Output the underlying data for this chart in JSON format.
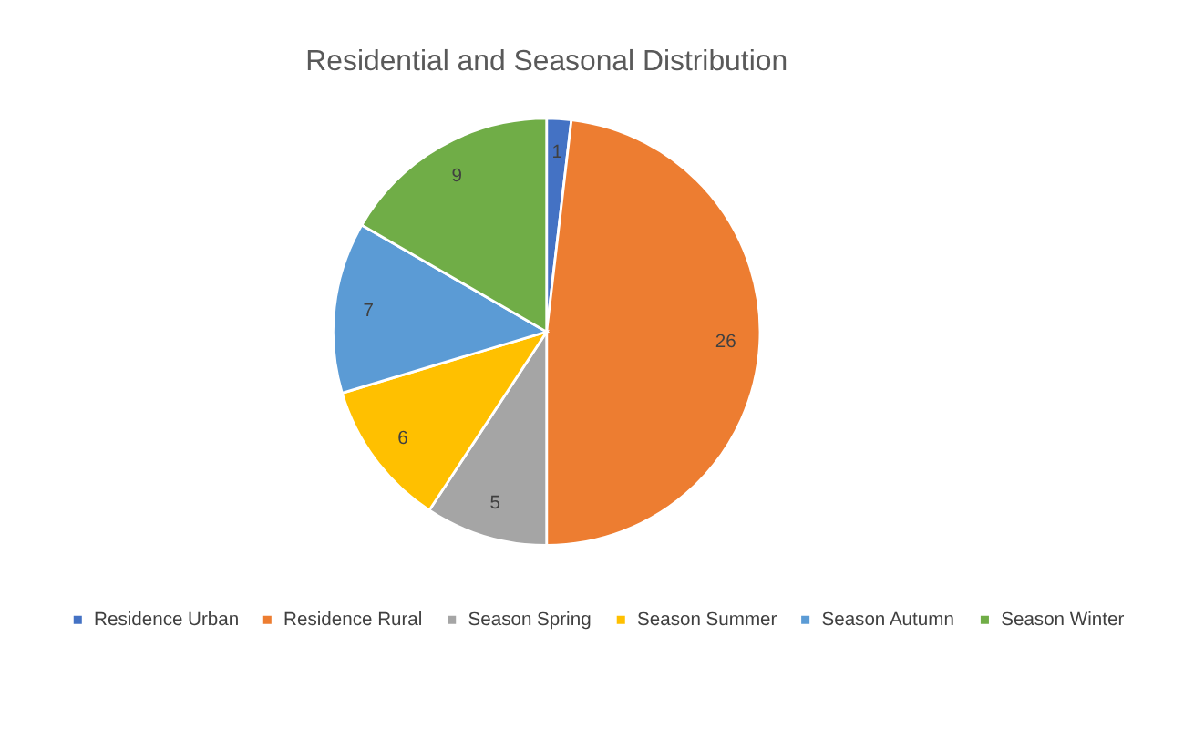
{
  "chart_data": {
    "type": "pie",
    "title": "Residential and Seasonal Distribution",
    "categories": [
      "Residence Urban",
      "Residence Rural",
      "Season Spring",
      "Season Summer",
      "Season Autumn",
      "Season Winter"
    ],
    "values": [
      1,
      26,
      5,
      6,
      7,
      9
    ],
    "colors": [
      "#4472c4",
      "#ed7d31",
      "#a5a5a5",
      "#ffc000",
      "#5b9bd5",
      "#70ad47"
    ],
    "data_labels": true,
    "legend": "bottom"
  }
}
